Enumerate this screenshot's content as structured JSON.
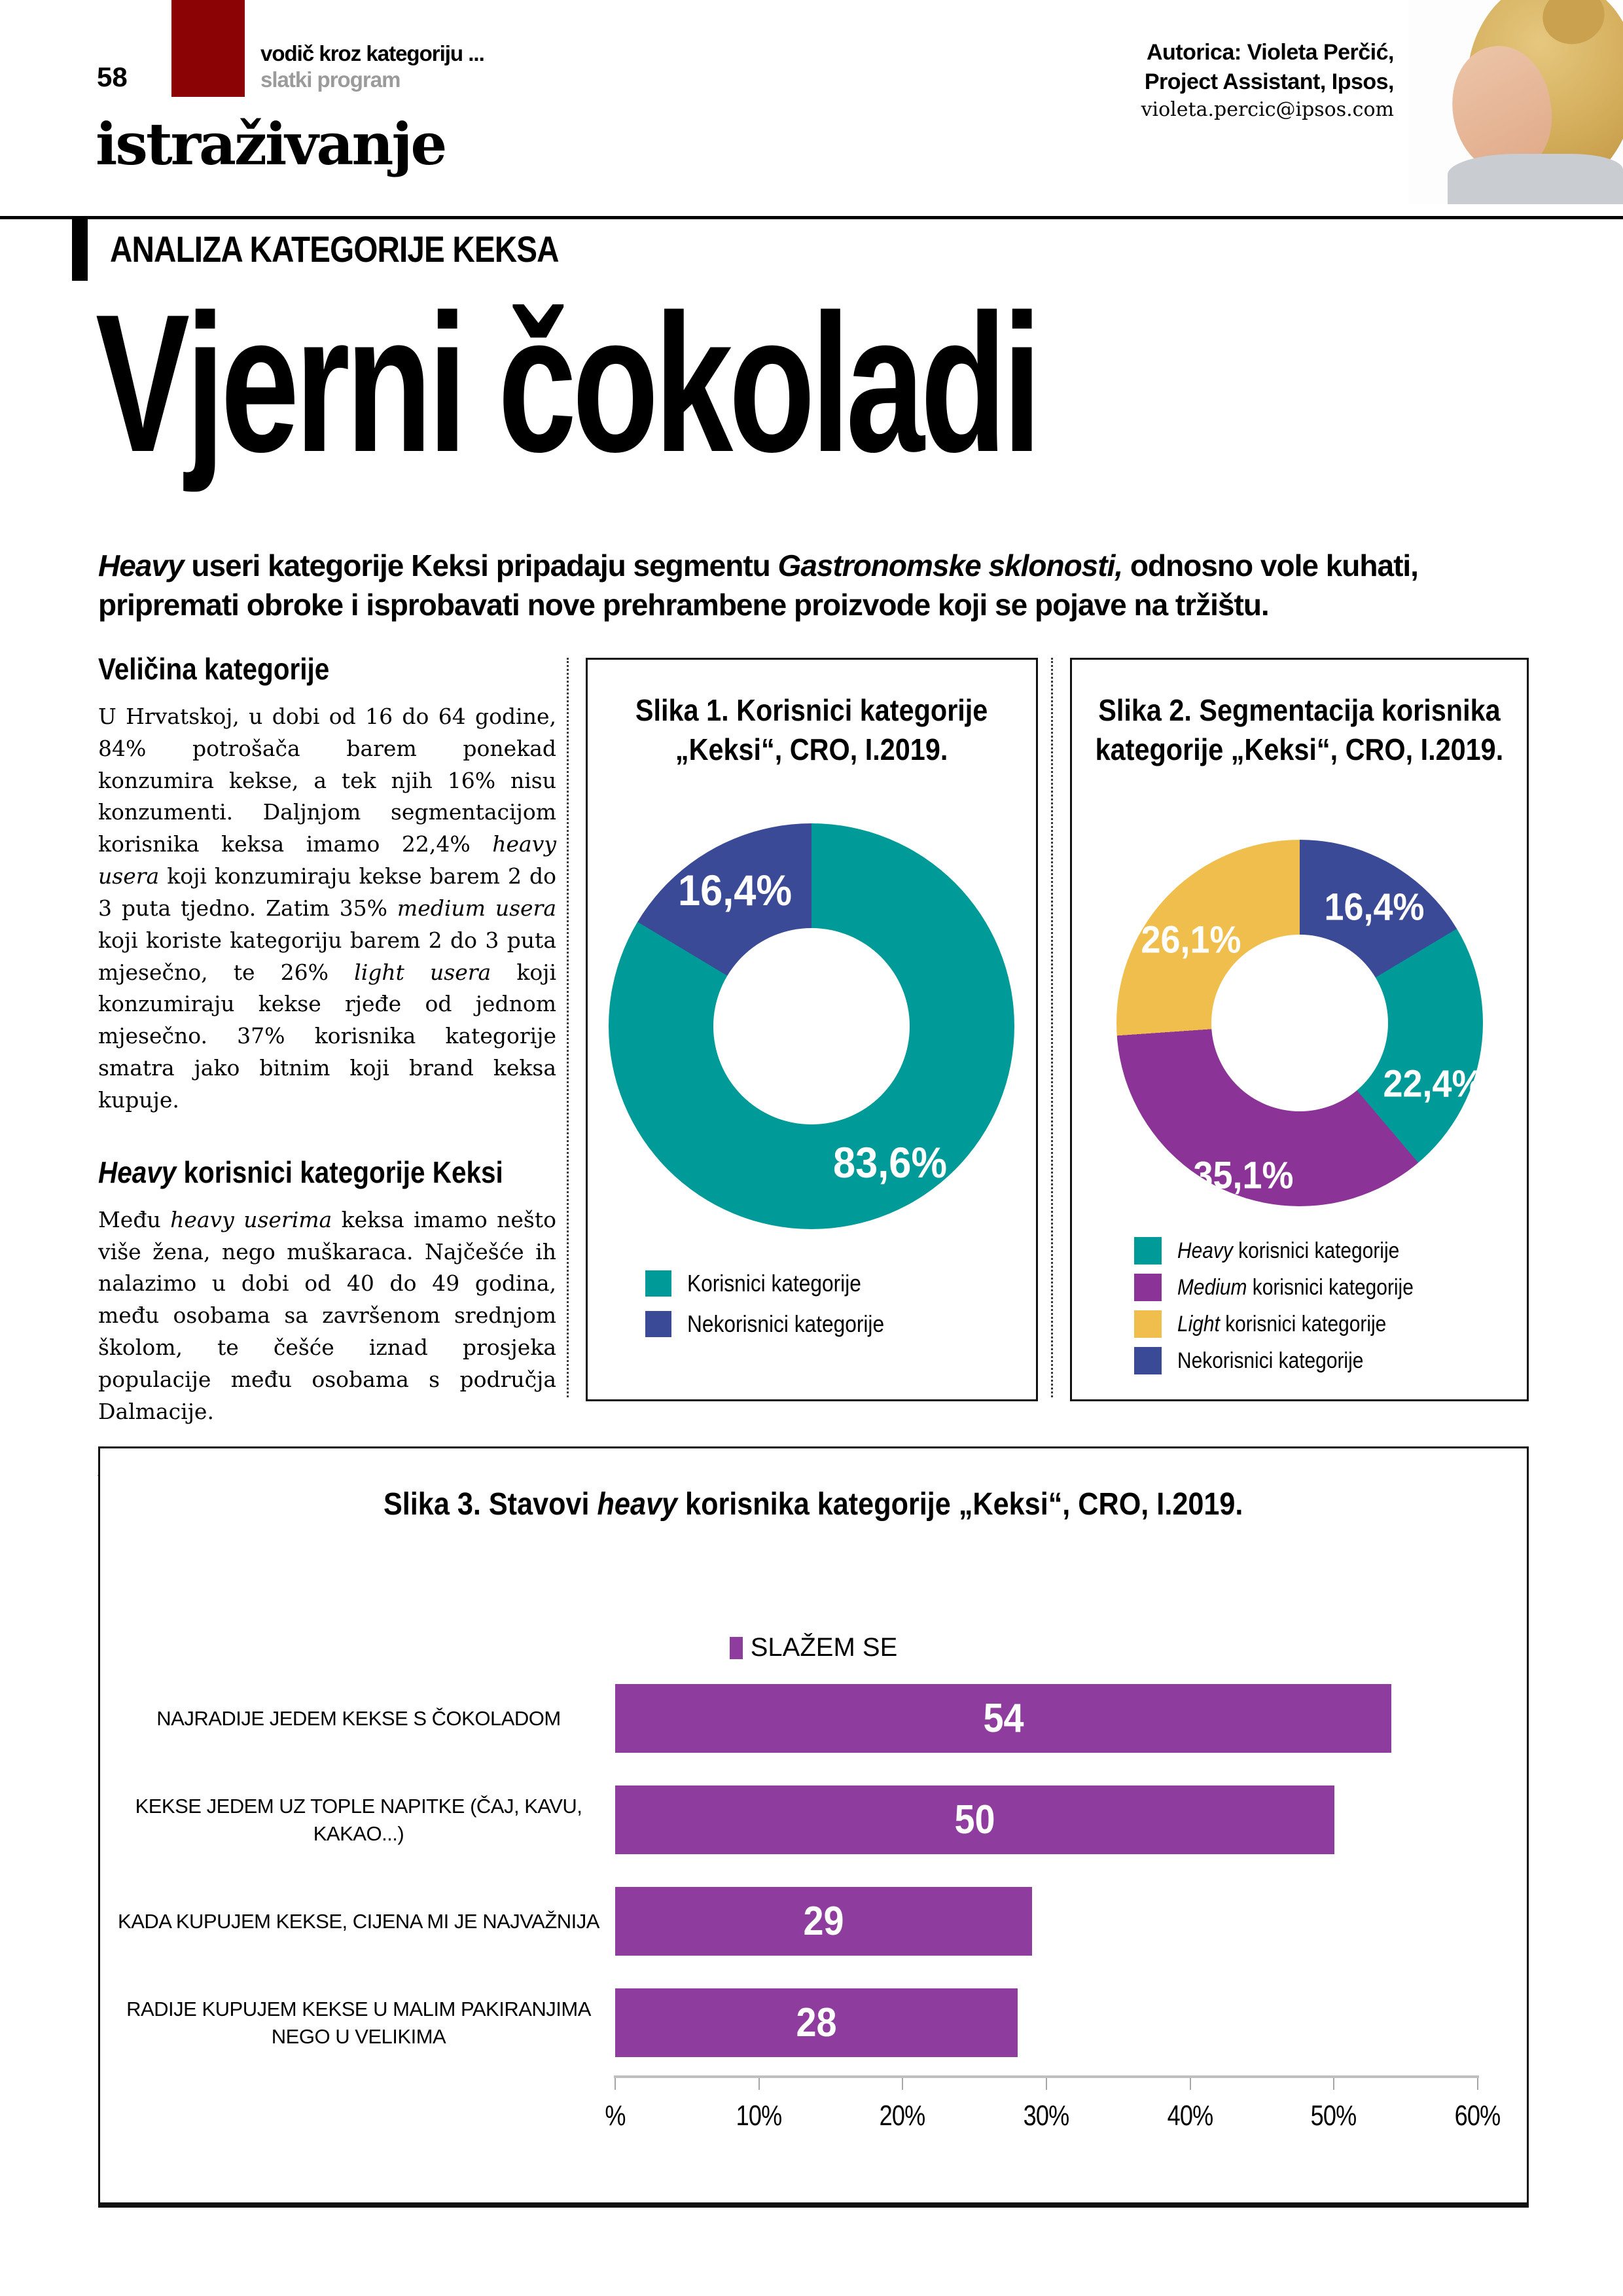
{
  "header": {
    "page_number": "58",
    "kicker_line1": "vodič kroz kategoriju ...",
    "kicker_line2": "slatki program",
    "section": "istraživanje",
    "author_line1": "Autorica: Violeta Perčić,",
    "author_line2": "Project Assistant, Ipsos,",
    "author_email": "violeta.percic@ipsos.com",
    "rubric": "ANALIZA KATEGORIJE KEKSA"
  },
  "article": {
    "title": "Vjerni čokoladi",
    "lead": [
      {
        "i": "Heavy"
      },
      " useri kategorije Keksi pripadaju segmentu ",
      {
        "i": "Gastronomske sklonosti,"
      },
      " odnosno vole kuhati, pripremati obroke i isprobavati nove prehrambene proizvode koji se pojave na tržištu."
    ],
    "h1": "Veličina kategorije",
    "p1": [
      "U Hrvatskoj, u dobi od 16 do 64 godine, 84% potrošača barem ponekad konzumira kekse, a tek njih 16% nisu konzumenti. Daljnjom segmentacijom korisnika keksa imamo 22,4% ",
      {
        "i": "heavy usera"
      },
      " koji konzumiraju kekse barem 2 do 3 puta tjedno. Zatim 35% ",
      {
        "i": "medium usera"
      },
      " koji koriste kategoriju barem 2 do 3 puta mjesečno, te 26% ",
      {
        "i": "light usera"
      },
      " koji konzumiraju kekse rjeđe od jednom mjesečno. 37% korisnika kategorije smatra jako bitnim koji brand keksa kupuje."
    ],
    "h2": [
      {
        "i": "Heavy"
      },
      " korisnici kategorije Keksi"
    ],
    "p2": [
      "Među ",
      {
        "i": "heavy userima"
      },
      " keksa imamo nešto više žena, nego muškaraca. Najčešće ih nalazimo u dobi od 40 do 49 godina, među osobama sa završenom srednjom školom, te češće iznad prosjeka populacije među osobama s područja Dalmacije."
    ],
    "p3": [
      {
        "i": "Heavy useri"
      },
      " kategorije Keksi pripadaju se-"
    ]
  },
  "chart_data": [
    {
      "type": "pie",
      "subtype": "donut",
      "title_line1": "Slika 1. Korisnici kategorije",
      "title_line2": "„Keksi“, CRO, I.2019.",
      "slices": [
        {
          "label": "Korisnici kategorije",
          "value": 83.6,
          "display": "83,6%",
          "color": "#009B98"
        },
        {
          "label": "Nekorisnici kategorije",
          "value": 16.4,
          "display": "16,4%",
          "color": "#3A4A96"
        }
      ],
      "legend_position": "bottom-left"
    },
    {
      "type": "pie",
      "subtype": "donut",
      "title_line1": "Slika 2. Segmentacija korisnika",
      "title_line2": "kategorije „Keksi“, CRO, I.2019.",
      "slices": [
        {
          "label": "Nekorisnici kategorije",
          "value": 16.4,
          "display": "16,4%",
          "color": "#3A4A96"
        },
        {
          "label": "Heavy korisnici kategorije",
          "value": 22.4,
          "display": "22,4%",
          "color": "#009B98"
        },
        {
          "label": "Medium korisnici kategorije",
          "value": 35.1,
          "display": "35,1%",
          "color": "#8B3397"
        },
        {
          "label": "Light korisnici kategorije",
          "value": 26.1,
          "display": "26,1%",
          "color": "#F0BE4D"
        }
      ],
      "legend": [
        {
          "rich": [
            {
              "i": "Heavy"
            },
            " korisnici kategorije"
          ],
          "color": "#009B98"
        },
        {
          "rich": [
            {
              "i": "Medium"
            },
            " korisnici kategorije"
          ],
          "color": "#8B3397"
        },
        {
          "rich": [
            {
              "i": "Light"
            },
            " korisnici kategorije"
          ],
          "color": "#F0BE4D"
        },
        {
          "rich": [
            "Nekorisnici kategorije"
          ],
          "color": "#3A4A96"
        }
      ],
      "legend_position": "bottom-left"
    },
    {
      "type": "bar",
      "orientation": "horizontal",
      "title_rich": [
        "Slika 3. Stavovi ",
        {
          "i": "heavy"
        },
        " korisnika kategorije „Keksi“, CRO, I.2019."
      ],
      "legend_label": "SLAŽEM SE",
      "bar_color": "#8E3C9E",
      "categories": [
        "NAJRADIJE JEDEM KEKSE S ČOKOLADOM",
        "KEKSE JEDEM UZ TOPLE NAPITKE (ČAJ, KAVU, KAKAO...)",
        "KADA KUPUJEM KEKSE, CIJENA MI JE NAJVAŽNIJA",
        "RADIJE KUPUJEM KEKSE U MALIM PAKIRANJIMA NEGO U VELIKIMA"
      ],
      "values": [
        54,
        50,
        29,
        28
      ],
      "xlim": [
        0,
        60
      ],
      "x_ticks": [
        "%",
        "10%",
        "20%",
        "30%",
        "40%",
        "50%",
        "60%"
      ],
      "grid": false,
      "legend_position": "top-center"
    }
  ],
  "colors": {
    "accent_red": "#8B0304",
    "teal": "#009B98",
    "blue": "#3A4A96",
    "purple": "#8B3397",
    "yellow": "#F0BE4D",
    "bar_purple": "#8E3C9E",
    "kicker_gray": "#9B9B9B",
    "axis_gray": "#BFBFBF"
  }
}
